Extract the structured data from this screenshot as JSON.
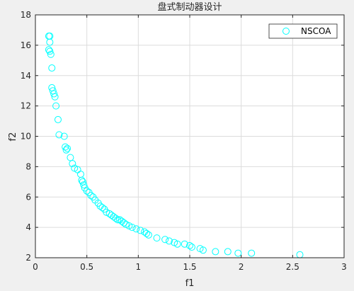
{
  "chart_data": {
    "type": "scatter",
    "title": "盘式制动器设计",
    "xlabel": "f1",
    "ylabel": "f2",
    "xlim": [
      0,
      3
    ],
    "ylim": [
      2,
      18
    ],
    "xticks": [
      "0",
      "0.5",
      "1",
      "1.5",
      "2",
      "2.5",
      "3"
    ],
    "yticks": [
      "2",
      "4",
      "6",
      "8",
      "10",
      "12",
      "14",
      "16",
      "18"
    ],
    "grid": true,
    "legend": "top-right",
    "series": [
      {
        "name": "NSCOA",
        "color": "#00ffff",
        "marker": "circle-open",
        "x": [
          0.13,
          0.14,
          0.14,
          0.13,
          0.15,
          0.14,
          0.16,
          0.16,
          0.17,
          0.18,
          0.19,
          0.2,
          0.22,
          0.23,
          0.28,
          0.29,
          0.3,
          0.31,
          0.34,
          0.36,
          0.38,
          0.41,
          0.44,
          0.45,
          0.46,
          0.47,
          0.48,
          0.5,
          0.52,
          0.54,
          0.56,
          0.58,
          0.61,
          0.63,
          0.65,
          0.67,
          0.69,
          0.72,
          0.74,
          0.76,
          0.78,
          0.8,
          0.82,
          0.84,
          0.86,
          0.88,
          0.91,
          0.94,
          0.98,
          1.02,
          1.06,
          1.08,
          1.1,
          1.18,
          1.26,
          1.3,
          1.35,
          1.38,
          1.45,
          1.5,
          1.52,
          1.6,
          1.63,
          1.75,
          1.87,
          1.97,
          2.1,
          2.57
        ],
        "y": [
          16.6,
          16.2,
          16.6,
          15.7,
          15.4,
          15.6,
          14.5,
          13.2,
          13.0,
          12.8,
          12.6,
          12.0,
          11.1,
          10.1,
          10.0,
          9.3,
          9.1,
          9.2,
          8.6,
          8.2,
          7.9,
          7.8,
          7.5,
          7.1,
          7.0,
          6.8,
          6.6,
          6.4,
          6.3,
          6.1,
          6.0,
          5.8,
          5.6,
          5.4,
          5.3,
          5.2,
          5.0,
          4.9,
          4.8,
          4.7,
          4.6,
          4.5,
          4.5,
          4.4,
          4.3,
          4.2,
          4.1,
          4.0,
          3.9,
          3.8,
          3.7,
          3.6,
          3.5,
          3.3,
          3.2,
          3.1,
          3.0,
          2.9,
          2.9,
          2.8,
          2.7,
          2.6,
          2.5,
          2.4,
          2.4,
          2.3,
          2.3,
          2.2
        ]
      }
    ]
  }
}
